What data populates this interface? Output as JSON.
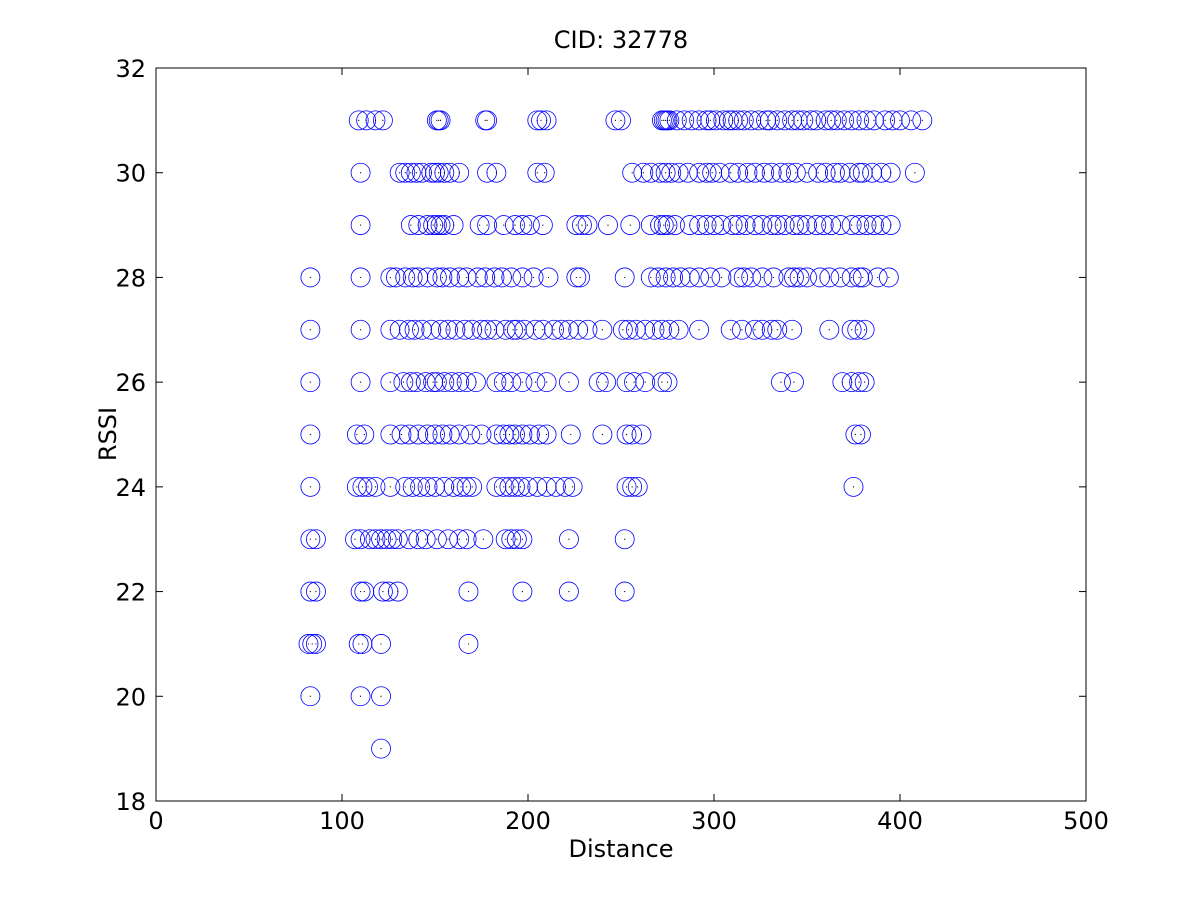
{
  "chart_data": {
    "type": "scatter",
    "title": "CID: 32778",
    "xlabel": "Distance",
    "ylabel": "RSSI",
    "xlim": [
      0,
      500
    ],
    "ylim": [
      18,
      32
    ],
    "xticks": [
      0,
      100,
      200,
      300,
      400,
      500
    ],
    "yticks": [
      18,
      20,
      22,
      24,
      26,
      28,
      30,
      32
    ],
    "grid": false,
    "legend": "none",
    "marker": "circle-outline-with-center-dot",
    "series_color": "#0000ff",
    "rows": [
      {
        "y": 31,
        "x": [
          109,
          113,
          118,
          122,
          151,
          152,
          153,
          177,
          178,
          205,
          207,
          210,
          247,
          250,
          272,
          273,
          274,
          275,
          276,
          280,
          284,
          288,
          292,
          296,
          298,
          301,
          305,
          308,
          310,
          313,
          316,
          320,
          324,
          328,
          330,
          334,
          338,
          342,
          345,
          348,
          352,
          355,
          360,
          363,
          366,
          370,
          374,
          378,
          382,
          386,
          392,
          396,
          400,
          406,
          412
        ]
      },
      {
        "y": 30,
        "x": [
          110,
          131,
          134,
          137,
          140,
          143,
          148,
          150,
          152,
          155,
          158,
          163,
          178,
          183,
          205,
          209,
          256,
          262,
          266,
          271,
          274,
          277,
          281,
          286,
          292,
          296,
          299,
          303,
          309,
          313,
          318,
          322,
          327,
          331,
          336,
          340,
          344,
          350,
          356,
          360,
          365,
          368,
          373,
          378,
          380,
          385,
          390,
          395,
          408
        ]
      },
      {
        "y": 29,
        "x": [
          110,
          137,
          141,
          146,
          149,
          151,
          153,
          155,
          160,
          174,
          178,
          187,
          193,
          197,
          201,
          208,
          226,
          229,
          232,
          243,
          255,
          266,
          271,
          273,
          275,
          279,
          287,
          292,
          296,
          300,
          304,
          310,
          313,
          317,
          322,
          326,
          331,
          334,
          338,
          343,
          346,
          350,
          355,
          359,
          363,
          368,
          374,
          378,
          382,
          386,
          390,
          395
        ]
      },
      {
        "y": 28,
        "x": [
          83,
          110,
          126,
          129,
          134,
          138,
          141,
          146,
          151,
          154,
          158,
          163,
          167,
          173,
          177,
          182,
          186,
          191,
          197,
          203,
          211,
          226,
          228,
          252,
          266,
          270,
          274,
          278,
          282,
          287,
          292,
          298,
          304,
          313,
          316,
          320,
          326,
          332,
          340,
          343,
          346,
          350,
          357,
          362,
          368,
          374,
          378,
          380,
          388,
          394
        ]
      },
      {
        "y": 27,
        "x": [
          83,
          110,
          126,
          131,
          136,
          139,
          143,
          148,
          153,
          157,
          161,
          166,
          170,
          175,
          178,
          182,
          188,
          192,
          194,
          198,
          204,
          208,
          214,
          218,
          222,
          227,
          232,
          240,
          251,
          254,
          258,
          263,
          268,
          272,
          276,
          281,
          292,
          309,
          315,
          322,
          326,
          331,
          334,
          342,
          362,
          374,
          377,
          381
        ]
      },
      {
        "y": 26,
        "x": [
          83,
          110,
          126,
          133,
          137,
          140,
          145,
          149,
          151,
          155,
          159,
          163,
          167,
          172,
          183,
          187,
          191,
          197,
          204,
          210,
          222,
          238,
          242,
          253,
          257,
          263,
          272,
          275,
          336,
          343,
          369,
          374,
          378,
          381
        ]
      },
      {
        "y": 25,
        "x": [
          83,
          108,
          112,
          126,
          132,
          136,
          141,
          146,
          150,
          154,
          158,
          163,
          169,
          175,
          183,
          187,
          190,
          193,
          197,
          201,
          206,
          210,
          223,
          240,
          253,
          256,
          261,
          376,
          379
        ]
      },
      {
        "y": 24,
        "x": [
          83,
          108,
          111,
          114,
          118,
          126,
          134,
          138,
          142,
          146,
          150,
          155,
          160,
          164,
          167,
          170,
          183,
          187,
          190,
          193,
          196,
          200,
          205,
          210,
          215,
          220,
          224,
          253,
          256,
          259,
          375
        ]
      },
      {
        "y": 23,
        "x": [
          83,
          86,
          107,
          110,
          115,
          118,
          121,
          124,
          127,
          130,
          136,
          141,
          145,
          151,
          157,
          163,
          167,
          176,
          188,
          191,
          194,
          197,
          222,
          252
        ]
      },
      {
        "y": 22,
        "x": [
          83,
          86,
          110,
          112,
          122,
          125,
          130,
          168,
          197,
          222,
          252
        ]
      },
      {
        "y": 21,
        "x": [
          82,
          84,
          86,
          109,
          111,
          121,
          168
        ]
      },
      {
        "y": 20,
        "x": [
          83,
          110,
          121
        ]
      },
      {
        "y": 19,
        "x": [
          121
        ]
      }
    ]
  }
}
